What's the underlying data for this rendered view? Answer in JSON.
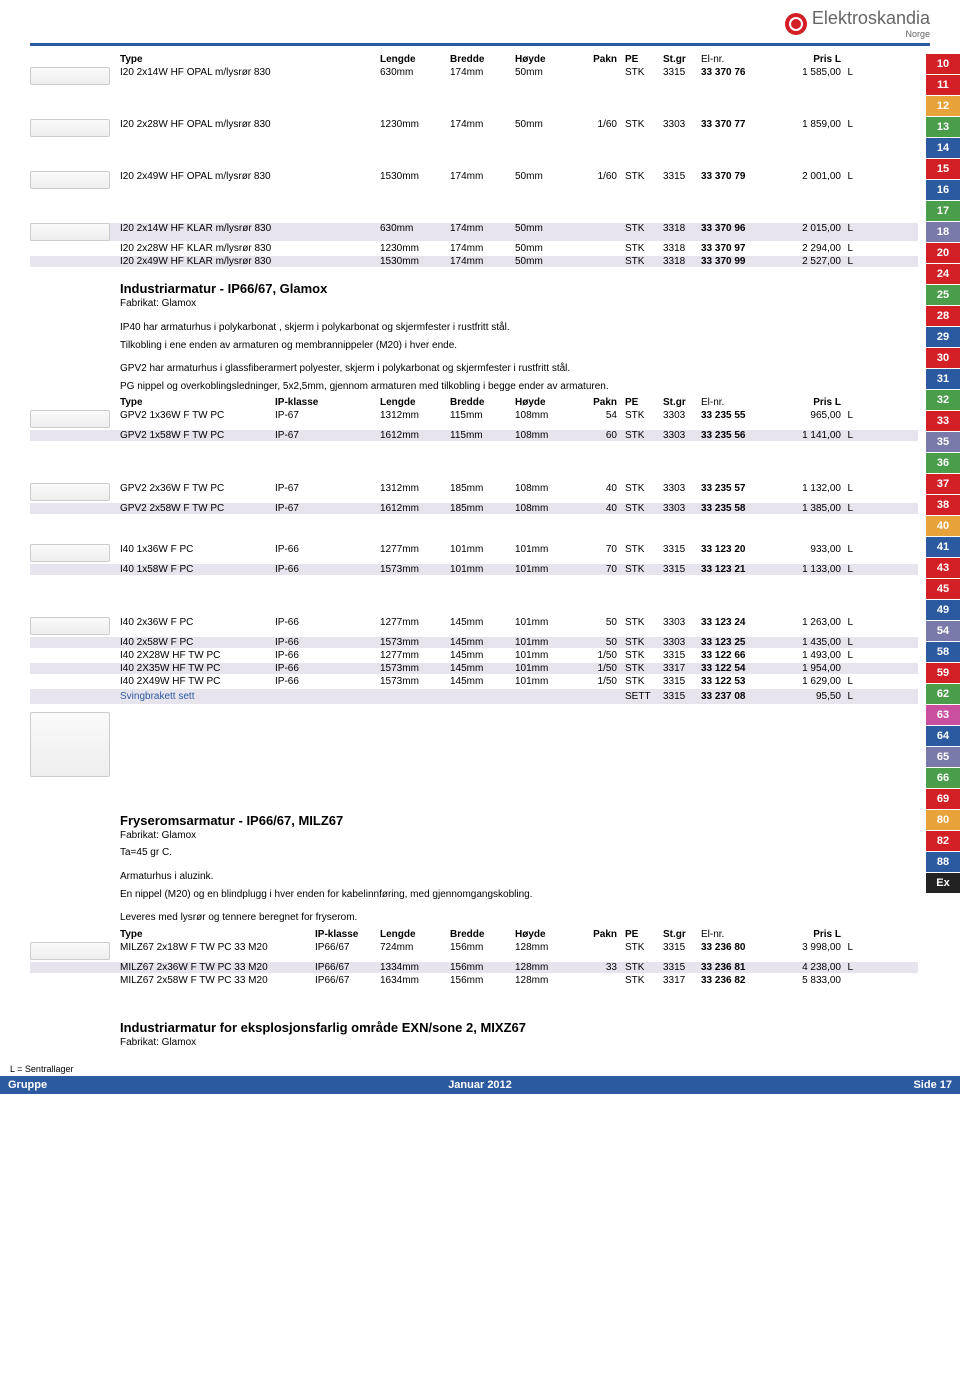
{
  "brand": {
    "name": "Elektroskandia",
    "country": "Norge"
  },
  "sidebar": {
    "items": [
      {
        "n": "10",
        "c": "#d32027"
      },
      {
        "n": "11",
        "c": "#d32027"
      },
      {
        "n": "12",
        "c": "#e8a23a"
      },
      {
        "n": "13",
        "c": "#4a9d4a"
      },
      {
        "n": "14",
        "c": "#2c5aa0"
      },
      {
        "n": "15",
        "c": "#d32027"
      },
      {
        "n": "16",
        "c": "#2c5aa0"
      },
      {
        "n": "17",
        "c": "#4a9d4a"
      },
      {
        "n": "18",
        "c": "#7a7aaa"
      },
      {
        "n": "20",
        "c": "#d32027"
      },
      {
        "n": "24",
        "c": "#d32027"
      },
      {
        "n": "25",
        "c": "#4a9d4a"
      },
      {
        "n": "28",
        "c": "#d32027"
      },
      {
        "n": "29",
        "c": "#2c5aa0"
      },
      {
        "n": "30",
        "c": "#d32027"
      },
      {
        "n": "31",
        "c": "#2c5aa0"
      },
      {
        "n": "32",
        "c": "#4a9d4a"
      },
      {
        "n": "33",
        "c": "#d32027"
      },
      {
        "n": "35",
        "c": "#7a7aaa"
      },
      {
        "n": "36",
        "c": "#4a9d4a"
      },
      {
        "n": "37",
        "c": "#d32027"
      },
      {
        "n": "38",
        "c": "#d32027"
      },
      {
        "n": "40",
        "c": "#e8a23a"
      },
      {
        "n": "41",
        "c": "#2c5aa0"
      },
      {
        "n": "43",
        "c": "#d32027"
      },
      {
        "n": "45",
        "c": "#d32027"
      },
      {
        "n": "49",
        "c": "#2c5aa0"
      },
      {
        "n": "54",
        "c": "#7a7aaa"
      },
      {
        "n": "58",
        "c": "#2c5aa0"
      },
      {
        "n": "59",
        "c": "#d32027"
      },
      {
        "n": "62",
        "c": "#4a9d4a"
      },
      {
        "n": "63",
        "c": "#c94f9f"
      },
      {
        "n": "64",
        "c": "#2c5aa0"
      },
      {
        "n": "65",
        "c": "#7a7aaa"
      },
      {
        "n": "66",
        "c": "#4a9d4a"
      },
      {
        "n": "69",
        "c": "#d32027"
      },
      {
        "n": "80",
        "c": "#e8a23a"
      },
      {
        "n": "82",
        "c": "#d32027"
      },
      {
        "n": "88",
        "c": "#2c5aa0"
      },
      {
        "n": "Ex",
        "c": "#222"
      }
    ]
  },
  "headers1": {
    "type": "Type",
    "len": "Lengde",
    "bred": "Bredde",
    "hoy": "Høyde",
    "pakn": "Pakn",
    "pe": "PE",
    "stgr": "St.gr",
    "elnr": "El-nr.",
    "pris": "Pris L"
  },
  "headers2": {
    "type": "Type",
    "ip": "IP-klasse",
    "len": "Lengde",
    "bred": "Bredde",
    "hoy": "Høyde",
    "pakn": "Pakn",
    "pe": "PE",
    "stgr": "St.gr",
    "elnr": "El-nr.",
    "pris": "Pris L"
  },
  "group1": [
    {
      "type": "I20 2x14W HF OPAL m/lysrør 830",
      "len": "630mm",
      "bred": "174mm",
      "hoy": "50mm",
      "pakn": "",
      "pe": "STK",
      "stgr": "3315",
      "elnr": "33 370 76",
      "pris": "1 585,00",
      "unit": "L"
    }
  ],
  "group2": [
    {
      "type": "I20 2x28W HF OPAL m/lysrør 830",
      "len": "1230mm",
      "bred": "174mm",
      "hoy": "50mm",
      "pakn": "1/60",
      "pe": "STK",
      "stgr": "3303",
      "elnr": "33 370 77",
      "pris": "1 859,00",
      "unit": "L"
    }
  ],
  "group3": [
    {
      "type": "I20 2x49W HF OPAL m/lysrør 830",
      "len": "1530mm",
      "bred": "174mm",
      "hoy": "50mm",
      "pakn": "1/60",
      "pe": "STK",
      "stgr": "3315",
      "elnr": "33 370 79",
      "pris": "2 001,00",
      "unit": "L"
    }
  ],
  "group4": [
    {
      "type": "I20 2x14W HF KLAR m/lysrør 830",
      "len": "630mm",
      "bred": "174mm",
      "hoy": "50mm",
      "pakn": "",
      "pe": "STK",
      "stgr": "3318",
      "elnr": "33 370 96",
      "pris": "2 015,00",
      "unit": "L",
      "shaded": true
    },
    {
      "type": "I20 2x28W HF KLAR m/lysrør 830",
      "len": "1230mm",
      "bred": "174mm",
      "hoy": "50mm",
      "pakn": "",
      "pe": "STK",
      "stgr": "3318",
      "elnr": "33 370 97",
      "pris": "2 294,00",
      "unit": "L"
    },
    {
      "type": "I20 2x49W HF KLAR m/lysrør 830",
      "len": "1530mm",
      "bred": "174mm",
      "hoy": "50mm",
      "pakn": "",
      "pe": "STK",
      "stgr": "3318",
      "elnr": "33 370 99",
      "pris": "2 527,00",
      "unit": "L",
      "shaded": true
    }
  ],
  "section1": {
    "title": "Industriarmatur - IP66/67, Glamox",
    "sub": "Fabrikat: Glamox",
    "desc1": "IP40 har armaturhus i polykarbonat , skjerm i polykarbonat og skjermfester i rustfritt stål.",
    "desc2": "Tilkobling i ene enden av armaturen og membrannippeler (M20) i hver ende.",
    "desc3": "GPV2 har armaturhus i glassfiberarmert polyester, skjerm i polykarbonat og skjermfester i rustfritt stål.",
    "desc4": "PG nippel og overkoblingsledninger, 5x2,5mm, gjennom armaturen med tilkobling i begge ender av armaturen."
  },
  "gpv1": [
    {
      "type": "GPV2 1x36W F TW PC",
      "ip": "IP-67",
      "len": "1312mm",
      "bred": "115mm",
      "hoy": "108mm",
      "pakn": "54",
      "pe": "STK",
      "stgr": "3303",
      "elnr": "33 235 55",
      "pris": "965,00",
      "unit": "L"
    },
    {
      "type": "GPV2 1x58W F TW PC",
      "ip": "IP-67",
      "len": "1612mm",
      "bred": "115mm",
      "hoy": "108mm",
      "pakn": "60",
      "pe": "STK",
      "stgr": "3303",
      "elnr": "33 235 56",
      "pris": "1 141,00",
      "unit": "L",
      "shaded": true
    }
  ],
  "gpv2": [
    {
      "type": "GPV2 2x36W F TW PC",
      "ip": "IP-67",
      "len": "1312mm",
      "bred": "185mm",
      "hoy": "108mm",
      "pakn": "40",
      "pe": "STK",
      "stgr": "3303",
      "elnr": "33 235 57",
      "pris": "1 132,00",
      "unit": "L"
    },
    {
      "type": "GPV2 2x58W F TW PC",
      "ip": "IP-67",
      "len": "1612mm",
      "bred": "185mm",
      "hoy": "108mm",
      "pakn": "40",
      "pe": "STK",
      "stgr": "3303",
      "elnr": "33 235 58",
      "pris": "1 385,00",
      "unit": "L",
      "shaded": true
    }
  ],
  "i40a": [
    {
      "type": "I40 1x36W F PC",
      "ip": "IP-66",
      "len": "1277mm",
      "bred": "101mm",
      "hoy": "101mm",
      "pakn": "70",
      "pe": "STK",
      "stgr": "3315",
      "elnr": "33 123 20",
      "pris": "933,00",
      "unit": "L"
    },
    {
      "type": "I40 1x58W F PC",
      "ip": "IP-66",
      "len": "1573mm",
      "bred": "101mm",
      "hoy": "101mm",
      "pakn": "70",
      "pe": "STK",
      "stgr": "3315",
      "elnr": "33 123 21",
      "pris": "1 133,00",
      "unit": "L",
      "shaded": true
    }
  ],
  "i40b": [
    {
      "type": "I40 2x36W F PC",
      "ip": "IP-66",
      "len": "1277mm",
      "bred": "145mm",
      "hoy": "101mm",
      "pakn": "50",
      "pe": "STK",
      "stgr": "3303",
      "elnr": "33 123 24",
      "pris": "1 263,00",
      "unit": "L"
    },
    {
      "type": "I40 2x58W F PC",
      "ip": "IP-66",
      "len": "1573mm",
      "bred": "145mm",
      "hoy": "101mm",
      "pakn": "50",
      "pe": "STK",
      "stgr": "3303",
      "elnr": "33 123 25",
      "pris": "1 435,00",
      "unit": "L",
      "shaded": true
    },
    {
      "type": "I40 2X28W HF TW PC",
      "ip": "IP-66",
      "len": "1277mm",
      "bred": "145mm",
      "hoy": "101mm",
      "pakn": "1/50",
      "pe": "STK",
      "stgr": "3315",
      "elnr": "33 122 66",
      "pris": "1 493,00",
      "unit": "L"
    },
    {
      "type": "I40 2X35W HF TW PC",
      "ip": "IP-66",
      "len": "1573mm",
      "bred": "145mm",
      "hoy": "101mm",
      "pakn": "1/50",
      "pe": "STK",
      "stgr": "3317",
      "elnr": "33 122 54",
      "pris": "1 954,00",
      "unit": "",
      "shaded": true
    },
    {
      "type": "I40 2X49W HF TW PC",
      "ip": "IP-66",
      "len": "1573mm",
      "bred": "145mm",
      "hoy": "101mm",
      "pakn": "1/50",
      "pe": "STK",
      "stgr": "3315",
      "elnr": "33 122 53",
      "pris": "1 629,00",
      "unit": "L"
    }
  ],
  "sving": {
    "label": "Svingbrakett sett",
    "pe": "SETT",
    "stgr": "3315",
    "elnr": "33 237 08",
    "pris": "95,50",
    "unit": "L"
  },
  "section2": {
    "title": "Fryseromsarmatur - IP66/67, MILZ67",
    "sub": "Fabrikat: Glamox",
    "sub2": "Ta=45 gr C.",
    "desc1": "Armaturhus i aluzink.",
    "desc2": "En nippel (M20) og en blindplugg i hver enden for kabelinnføring, med gjennomgangskobling.",
    "desc3": "Leveres med lysrør og tennere beregnet for fryserom."
  },
  "milz": [
    {
      "type": "MILZ67 2x18W F TW PC 33 M20",
      "ip": "IP66/67",
      "len": "724mm",
      "bred": "156mm",
      "hoy": "128mm",
      "pakn": "",
      "pe": "STK",
      "stgr": "3315",
      "elnr": "33 236 80",
      "pris": "3 998,00",
      "unit": "L"
    },
    {
      "type": "MILZ67 2x36W F TW PC 33 M20",
      "ip": "IP66/67",
      "len": "1334mm",
      "bred": "156mm",
      "hoy": "128mm",
      "pakn": "33",
      "pe": "STK",
      "stgr": "3315",
      "elnr": "33 236 81",
      "pris": "4 238,00",
      "unit": "L",
      "shaded": true
    },
    {
      "type": "MILZ67 2x58W F TW PC 33 M20",
      "ip": "IP66/67",
      "len": "1634mm",
      "bred": "156mm",
      "hoy": "128mm",
      "pakn": "",
      "pe": "STK",
      "stgr": "3317",
      "elnr": "33 236 82",
      "pris": "5 833,00",
      "unit": ""
    }
  ],
  "section3": {
    "title": "Industriarmatur for eksplosjonsfarlig område EXN/sone 2, MIXZ67",
    "sub": "Fabrikat: Glamox"
  },
  "footer": {
    "sentral": "L = Sentrallager",
    "left": "Gruppe",
    "mid": "Januar 2012",
    "right": "Side   17"
  }
}
